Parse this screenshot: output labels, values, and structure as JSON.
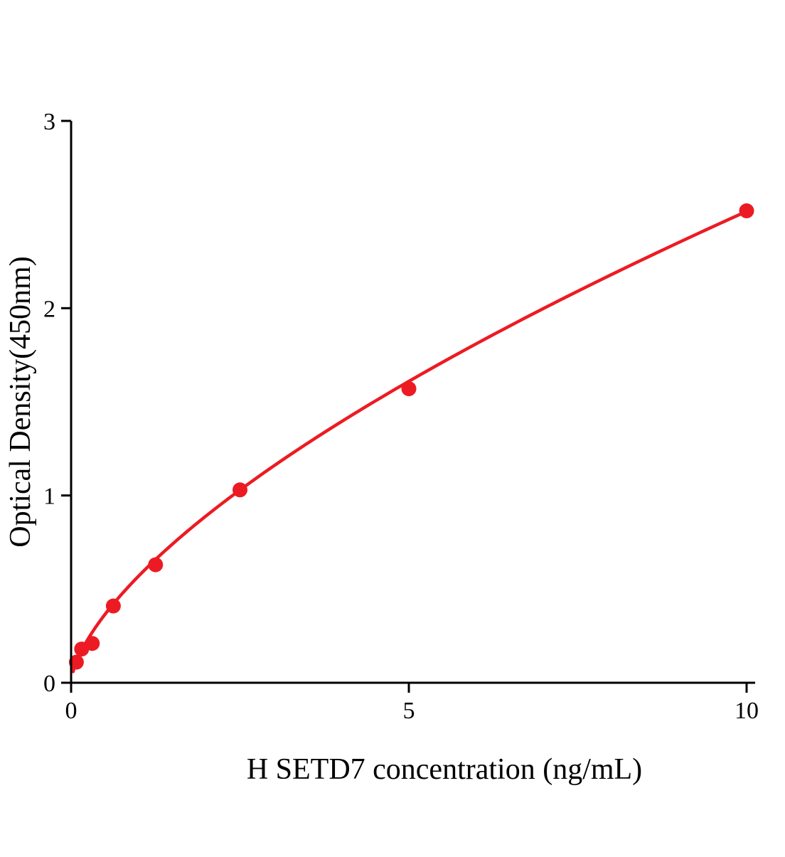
{
  "chart_data": {
    "type": "scatter",
    "title": "",
    "xlabel": "H SETD7 concentration (ng/mL)",
    "ylabel": "Optical Density(450nm)",
    "x": [
      0.078,
      0.156,
      0.313,
      0.625,
      1.25,
      2.5,
      5,
      10
    ],
    "y": [
      0.11,
      0.18,
      0.21,
      0.41,
      0.63,
      1.03,
      1.57,
      2.52
    ],
    "xlim": [
      0,
      10.2
    ],
    "ylim": [
      0,
      3
    ],
    "xticks": [
      0,
      5,
      10
    ],
    "yticks": [
      0,
      1,
      2,
      3
    ],
    "grid": false,
    "legend": "none",
    "marker_color": "#ec1b23",
    "line_color": "#ec1b23",
    "axis_color": "#000000",
    "fit": {
      "type": "power",
      "a": 0.57,
      "b": 0.645
    }
  }
}
